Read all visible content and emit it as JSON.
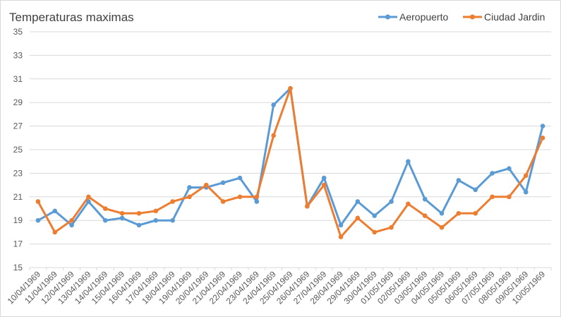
{
  "chart_data": {
    "type": "line",
    "title": "Temperaturas maximas",
    "xlabel": "",
    "ylabel": "",
    "ylim": [
      15,
      35
    ],
    "yticks": [
      15,
      17,
      19,
      21,
      23,
      25,
      27,
      29,
      31,
      33,
      35
    ],
    "grid": true,
    "legend_position": "top-right",
    "categories": [
      "10/04/1969",
      "11/04/1969",
      "12/04/1969",
      "13/04/1969",
      "14/04/1969",
      "15/04/1969",
      "16/04/1969",
      "17/04/1969",
      "18/04/1969",
      "19/04/1969",
      "20/04/1969",
      "21/04/1969",
      "22/04/1969",
      "23/04/1969",
      "24/04/1969",
      "25/04/1969",
      "26/04/1969",
      "27/04/1969",
      "28/04/1969",
      "29/04/1969",
      "30/04/1969",
      "01/05/1969",
      "02/05/1969",
      "03/05/1969",
      "04/05/1969",
      "05/05/1969",
      "06/05/1969",
      "07/05/1969",
      "08/05/1969",
      "09/05/1969",
      "10/05/1969"
    ],
    "series": [
      {
        "name": "Aeropuerto",
        "color": "#5b9bd5",
        "values": [
          19.0,
          19.8,
          18.6,
          20.6,
          19.0,
          19.2,
          18.6,
          19.0,
          19.0,
          21.8,
          21.8,
          22.2,
          22.6,
          20.6,
          28.8,
          30.2,
          20.2,
          22.6,
          18.6,
          20.6,
          19.4,
          20.6,
          24.0,
          20.8,
          19.6,
          22.4,
          21.6,
          23.0,
          23.4,
          21.4,
          27.0
        ]
      },
      {
        "name": "Ciudad Jardin",
        "color": "#ed7d31",
        "values": [
          20.6,
          18.0,
          19.0,
          21.0,
          20.0,
          19.6,
          19.6,
          19.8,
          20.6,
          21.0,
          22.0,
          20.6,
          21.0,
          21.0,
          26.2,
          30.2,
          20.2,
          22.0,
          17.6,
          19.2,
          18.0,
          18.4,
          20.4,
          19.4,
          18.4,
          19.6,
          19.6,
          21.0,
          21.0,
          22.8,
          26.0
        ]
      }
    ]
  }
}
